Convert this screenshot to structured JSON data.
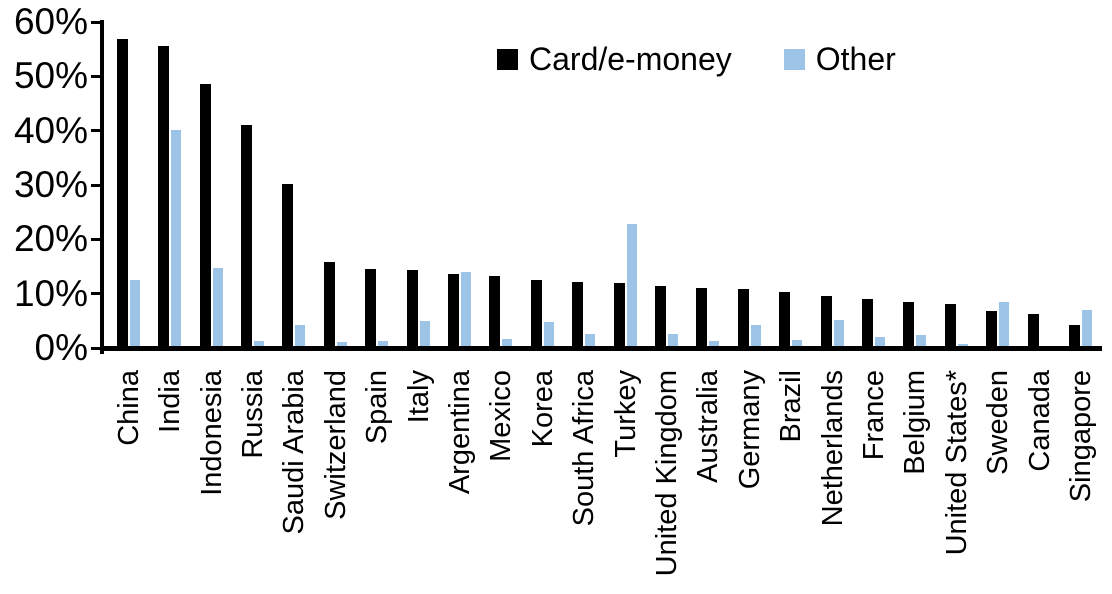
{
  "chart_data": {
    "type": "bar",
    "title": "",
    "xlabel": "",
    "ylabel": "",
    "value_format": "percent",
    "ylim": [
      0,
      60
    ],
    "ytick_labels": [
      "0%",
      "10%",
      "20%",
      "30%",
      "40%",
      "50%",
      "60%"
    ],
    "grid": false,
    "legend_position": "top-center",
    "categories": [
      "China",
      "India",
      "Indonesia",
      "Russia",
      "Saudi Arabia",
      "Switzerland",
      "Spain",
      "Italy",
      "Argentina",
      "Mexico",
      "Korea",
      "South Africa",
      "Turkey",
      "United Kingdom",
      "Australia",
      "Germany",
      "Brazil",
      "Netherlands",
      "France",
      "Belgium",
      "United States*",
      "Sweden",
      "Canada",
      "Singapore"
    ],
    "series": [
      {
        "name": "Card/e-money",
        "color": "#000000",
        "values": [
          56.5,
          55.2,
          48.3,
          40.6,
          29.8,
          15.4,
          14.2,
          14.0,
          13.3,
          12.8,
          12.2,
          11.7,
          11.6,
          11.0,
          10.7,
          10.5,
          10.0,
          9.2,
          8.6,
          8.1,
          7.8,
          6.5,
          5.9,
          3.8
        ]
      },
      {
        "name": "Other",
        "color": "#9DC3E6",
        "values": [
          12.1,
          39.7,
          14.4,
          1.0,
          3.8,
          0.7,
          0.9,
          4.6,
          13.7,
          1.3,
          4.5,
          2.3,
          22.5,
          2.3,
          1.0,
          3.9,
          1.1,
          4.8,
          1.6,
          2.0,
          0.4,
          8.1,
          0.0,
          6.6
        ]
      }
    ]
  }
}
